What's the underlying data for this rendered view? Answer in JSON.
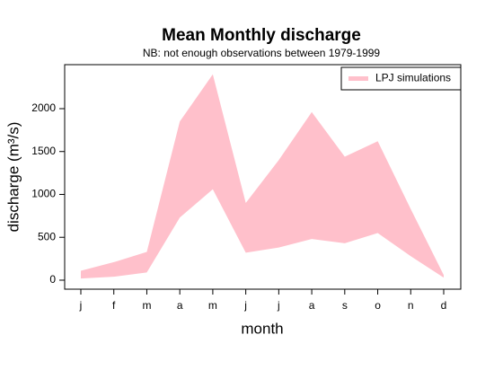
{
  "chart_data": {
    "type": "range-area",
    "title": "Mean Monthly discharge",
    "subtitle": "NB: not enough observations between 1979-1999",
    "x_label": "month",
    "y_label": "discharge (m³/s)",
    "categories": [
      "j",
      "f",
      "m",
      "a",
      "m",
      "j",
      "j",
      "a",
      "s",
      "o",
      "n",
      "d"
    ],
    "series": [
      {
        "name": "LPJ simulations",
        "color": "#ffc0cb",
        "upper": [
          110,
          210,
          330,
          1850,
          2400,
          900,
          1400,
          1960,
          1440,
          1620,
          830,
          60
        ],
        "lower": [
          20,
          40,
          90,
          730,
          1060,
          320,
          380,
          480,
          430,
          550,
          280,
          30
        ]
      }
    ],
    "ylim": [
      -105,
      2513
    ],
    "yticks": [
      0,
      500,
      1000,
      1500,
      2000
    ],
    "legend": "top-right"
  }
}
